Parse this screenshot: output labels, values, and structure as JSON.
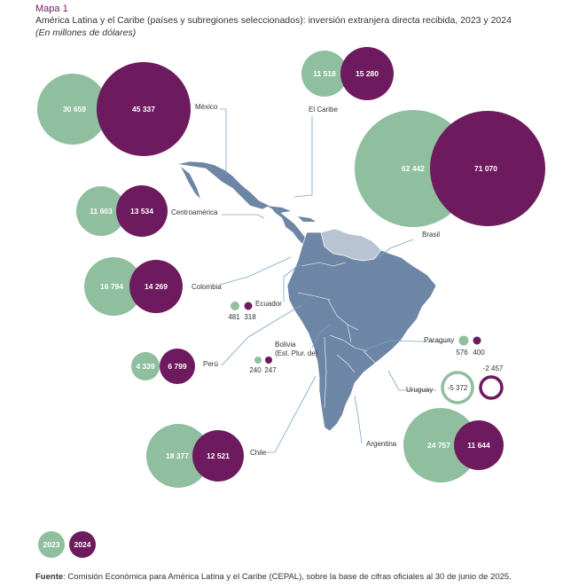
{
  "header": {
    "label": "Mapa 1",
    "title": "América Latina y el Caribe (países y subregiones seleccionados): inversión extranjera directa recibida, 2023 y 2024",
    "subtitle": "(En millones de dólares)"
  },
  "colors": {
    "y2023": "#8fbf9f",
    "y2024": "#6e1a5e",
    "land": "#6e86a6",
    "caribbean_land": "#b9c4d2",
    "leader": "#7aa6c9"
  },
  "legend": {
    "y2023": "2023",
    "y2024": "2024"
  },
  "source": {
    "prefix": "Fuente",
    "text": ":  Comisión Económica para América Latina y el Caribe (CEPAL), sobre la base de cifras oficiales al 30 de junio de 2025."
  },
  "countries": [
    {
      "id": "mexico",
      "name": "México",
      "v2023": 30659,
      "v2024": 45337,
      "label2023": "30 659",
      "label2024": "45 337"
    },
    {
      "id": "caribe",
      "name": "El Caribe",
      "v2023": 11518,
      "v2024": 15280,
      "label2023": "11 518",
      "label2024": "15 280"
    },
    {
      "id": "brasil",
      "name": "Brasil",
      "v2023": 62442,
      "v2024": 71070,
      "label2023": "62 442",
      "label2024": "71 070"
    },
    {
      "id": "centroamerica",
      "name": "Centroamérica",
      "v2023": 11603,
      "v2024": 13534,
      "label2023": "11 603",
      "label2024": "13 534"
    },
    {
      "id": "colombia",
      "name": "Colombia",
      "v2023": 16794,
      "v2024": 14269,
      "label2023": "16 794",
      "label2024": "14 269"
    },
    {
      "id": "ecuador",
      "name": "Ecuador",
      "v2023": 481,
      "v2024": 318,
      "label2023": "481",
      "label2024": "318"
    },
    {
      "id": "peru",
      "name": "Perú",
      "v2023": 4339,
      "v2024": 6799,
      "label2023": "4 339",
      "label2024": "6 799"
    },
    {
      "id": "bolivia",
      "name": "Bolivia",
      "name2": "(Est. Plur. de)",
      "v2023": 240,
      "v2024": 247,
      "label2023": "240",
      "label2024": "247"
    },
    {
      "id": "paraguay",
      "name": "Paraguay",
      "v2023": 576,
      "v2024": 400,
      "label2023": "576",
      "label2024": "400"
    },
    {
      "id": "uruguay",
      "name": "Uruguay",
      "v2023": -5372,
      "v2024": -2457,
      "label2023": "-5 372",
      "label2024": "-2 457"
    },
    {
      "id": "argentina",
      "name": "Argentina",
      "v2023": 24757,
      "v2024": 11644,
      "label2023": "24 757",
      "label2024": "11 644"
    },
    {
      "id": "chile",
      "name": "Chile",
      "v2023": 18377,
      "v2024": 12521,
      "label2023": "18 377",
      "label2024": "12 521"
    }
  ]
}
